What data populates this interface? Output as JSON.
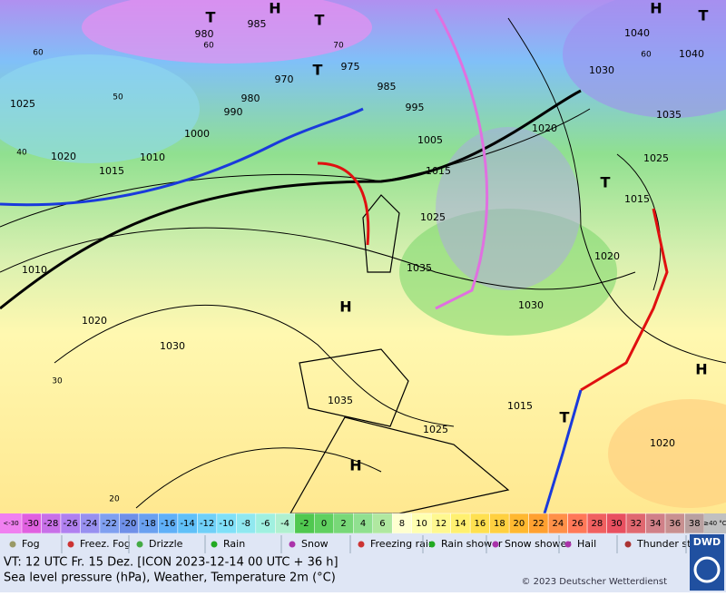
{
  "map": {
    "isobar_labels": [
      985,
      980,
      970,
      975,
      985,
      995,
      1005,
      1015,
      1025,
      1035,
      1030,
      1020,
      1030,
      1040,
      1040,
      1035,
      1025,
      1015,
      1020,
      1025,
      1020,
      1015,
      1010,
      1000,
      990,
      980,
      1010,
      1020,
      1030,
      1035,
      1015,
      1025,
      1020
    ],
    "temperature_labels": [
      60,
      50,
      40,
      30,
      20,
      60,
      70,
      60
    ],
    "pressure_centers": [
      "T",
      "H",
      "T",
      "T",
      "H",
      "H",
      "H",
      "T",
      "T",
      "H",
      "T"
    ]
  },
  "scale": {
    "low_label": "<-30",
    "values": [
      -30,
      -28,
      -26,
      -24,
      -22,
      -20,
      -18,
      -16,
      -14,
      -12,
      -10,
      -8,
      -6,
      -4,
      -2,
      0,
      2,
      4,
      6,
      8,
      10,
      12,
      14,
      16,
      18,
      20,
      22,
      24,
      26,
      28,
      30,
      32,
      34,
      36,
      38
    ],
    "high_label": "≥40 °C",
    "colors": [
      "#e060e0",
      "#c870e8",
      "#b080f0",
      "#9890f0",
      "#80a0f0",
      "#7090e8",
      "#6aa0f0",
      "#60b0f8",
      "#60c0f8",
      "#70d0f8",
      "#80e0f8",
      "#90e8f0",
      "#a0f0e0",
      "#b0f0d0",
      "#50c850",
      "#60d060",
      "#78d878",
      "#90e090",
      "#b0e8a0",
      "#ffffd0",
      "#ffffb0",
      "#fff890",
      "#fff070",
      "#ffe050",
      "#ffd040",
      "#ffb830",
      "#ffa030",
      "#ff9048",
      "#ff7858",
      "#f06060",
      "#e85060",
      "#e06870",
      "#d08088",
      "#c89090",
      "#b8a0a0"
    ],
    "low_color": "#f080f0",
    "high_color": "#c0c0c0"
  },
  "legend": [
    "Fog",
    "Freez. Fog",
    "Drizzle",
    "Rain",
    "Snow",
    "Freezing rain",
    "Rain shower",
    "Snow shower",
    "Hail",
    "Thunder storm"
  ],
  "footer": {
    "valid_time": "VT: 12 UTC Fr.  15 Dez. [ICON 2023-12-14  00 UTC + 36 h]",
    "description": "Sea level pressure (hPa), Weather, Temperature 2m (°C)",
    "copyright": "© 2023 Deutscher Wetterdienst",
    "logo": "DWD"
  }
}
